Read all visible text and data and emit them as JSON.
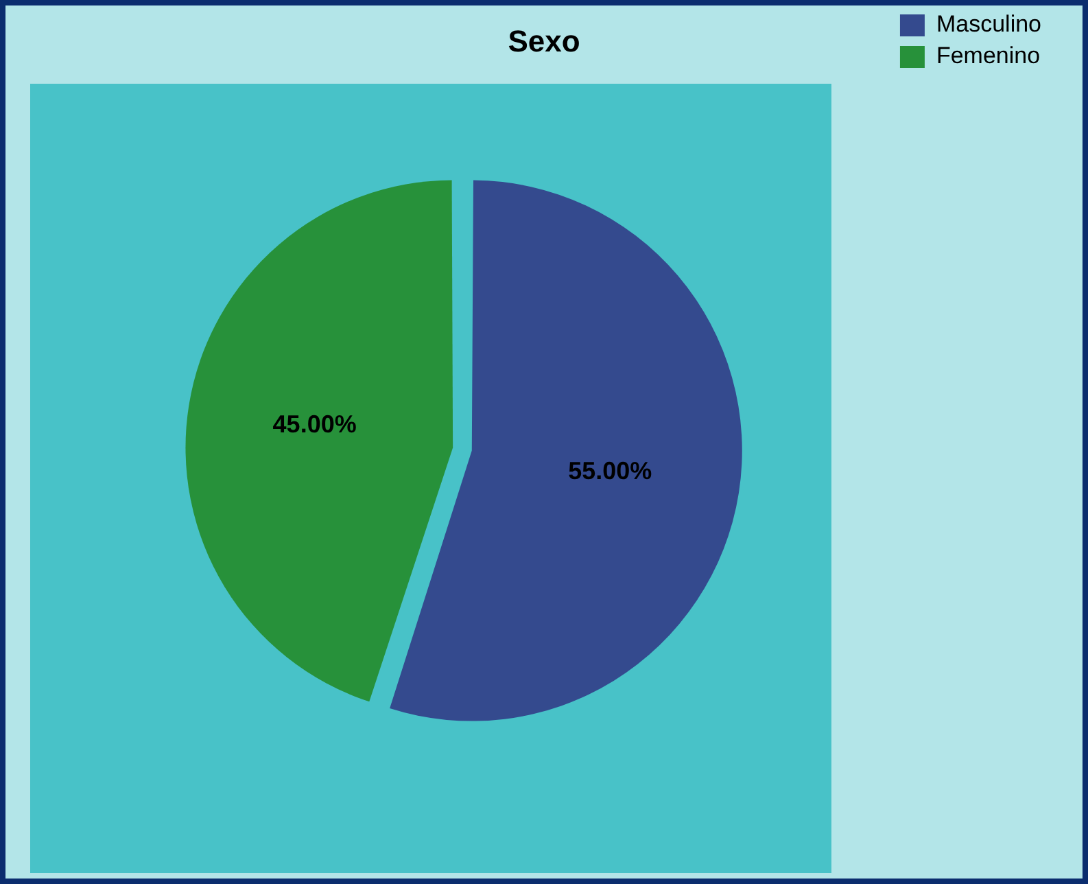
{
  "chart_data": {
    "type": "pie",
    "title": "Sexo",
    "categories": [
      "Masculino",
      "Femenino"
    ],
    "values": [
      55,
      45
    ],
    "colors": [
      "#344a8e",
      "#27913a"
    ],
    "value_labels": [
      "55.00%",
      "45.00%"
    ],
    "legend": "top right"
  }
}
